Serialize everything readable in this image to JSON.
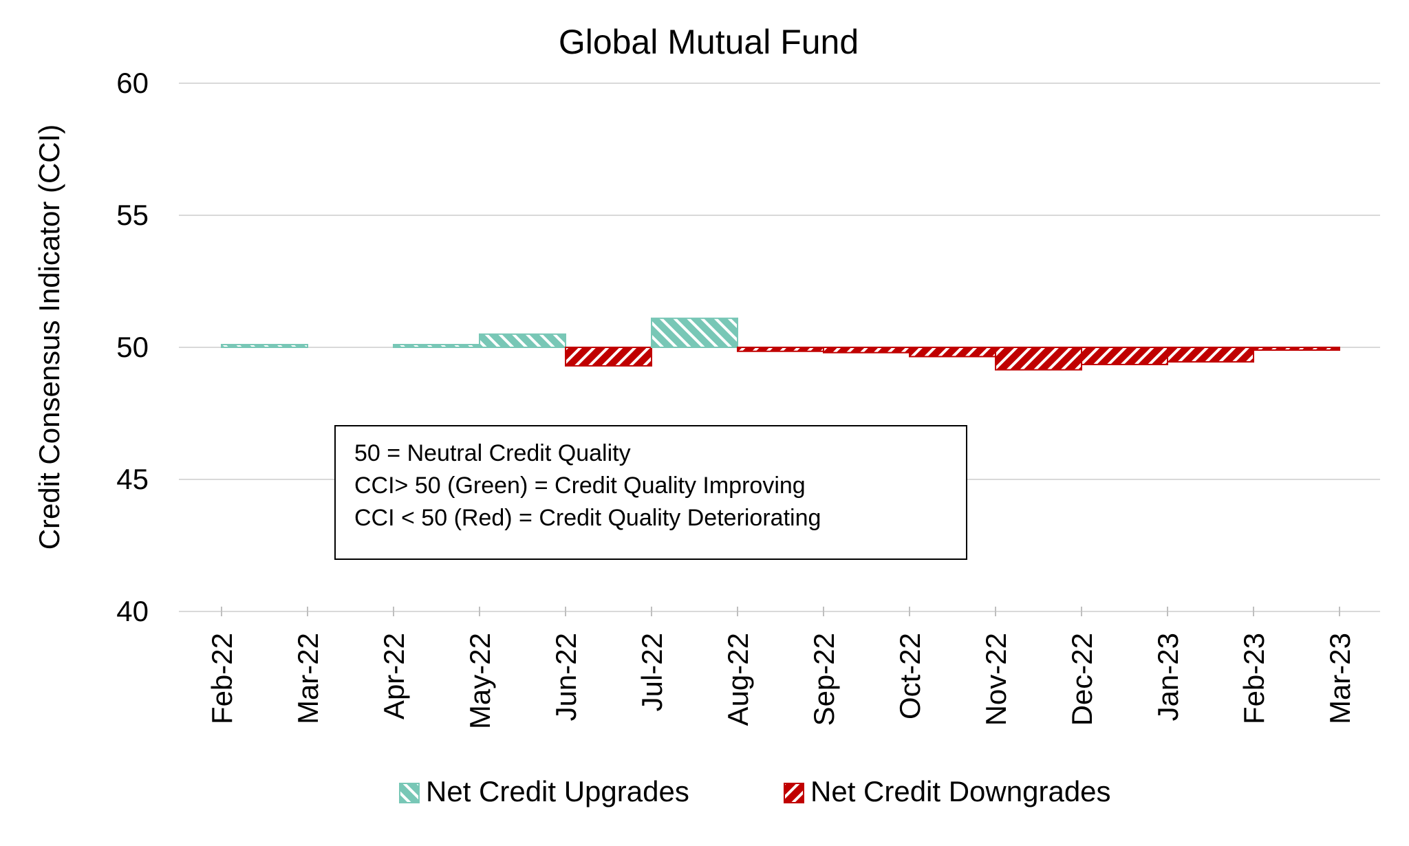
{
  "chart_data": {
    "type": "bar",
    "title": "Global Mutual Fund",
    "ylabel": "Credit Consensus Indicator (CCI)",
    "xlabel": "",
    "ylim": [
      40,
      60
    ],
    "yticks": [
      40,
      45,
      50,
      55,
      60
    ],
    "baseline": 50,
    "grid": true,
    "categories": [
      "Feb-22",
      "Mar-22",
      "Apr-22",
      "May-22",
      "Jun-22",
      "Jul-22",
      "Aug-22",
      "Sep-22",
      "Oct-22",
      "Nov-22",
      "Dec-22",
      "Jan-23",
      "Feb-23",
      "Mar-23"
    ],
    "values": [
      50.1,
      null,
      50.1,
      50.5,
      49.3,
      51.1,
      49.85,
      49.8,
      49.65,
      49.15,
      49.35,
      49.45,
      49.95,
      null
    ],
    "series": [
      {
        "name": "Net Credit Upgrades",
        "color": "#78c7b6",
        "pattern": "hatch-down-diagonal"
      },
      {
        "name": "Net Credit Downgrades",
        "color": "#c00000",
        "pattern": "hatch-up-diagonal"
      }
    ],
    "legend_position": "bottom",
    "annotation": {
      "lines": [
        "50 = Neutral Credit Quality",
        "CCI> 50 (Green) = Credit Quality Improving",
        "CCI < 50 (Red) = Credit Quality Deteriorating"
      ]
    }
  }
}
